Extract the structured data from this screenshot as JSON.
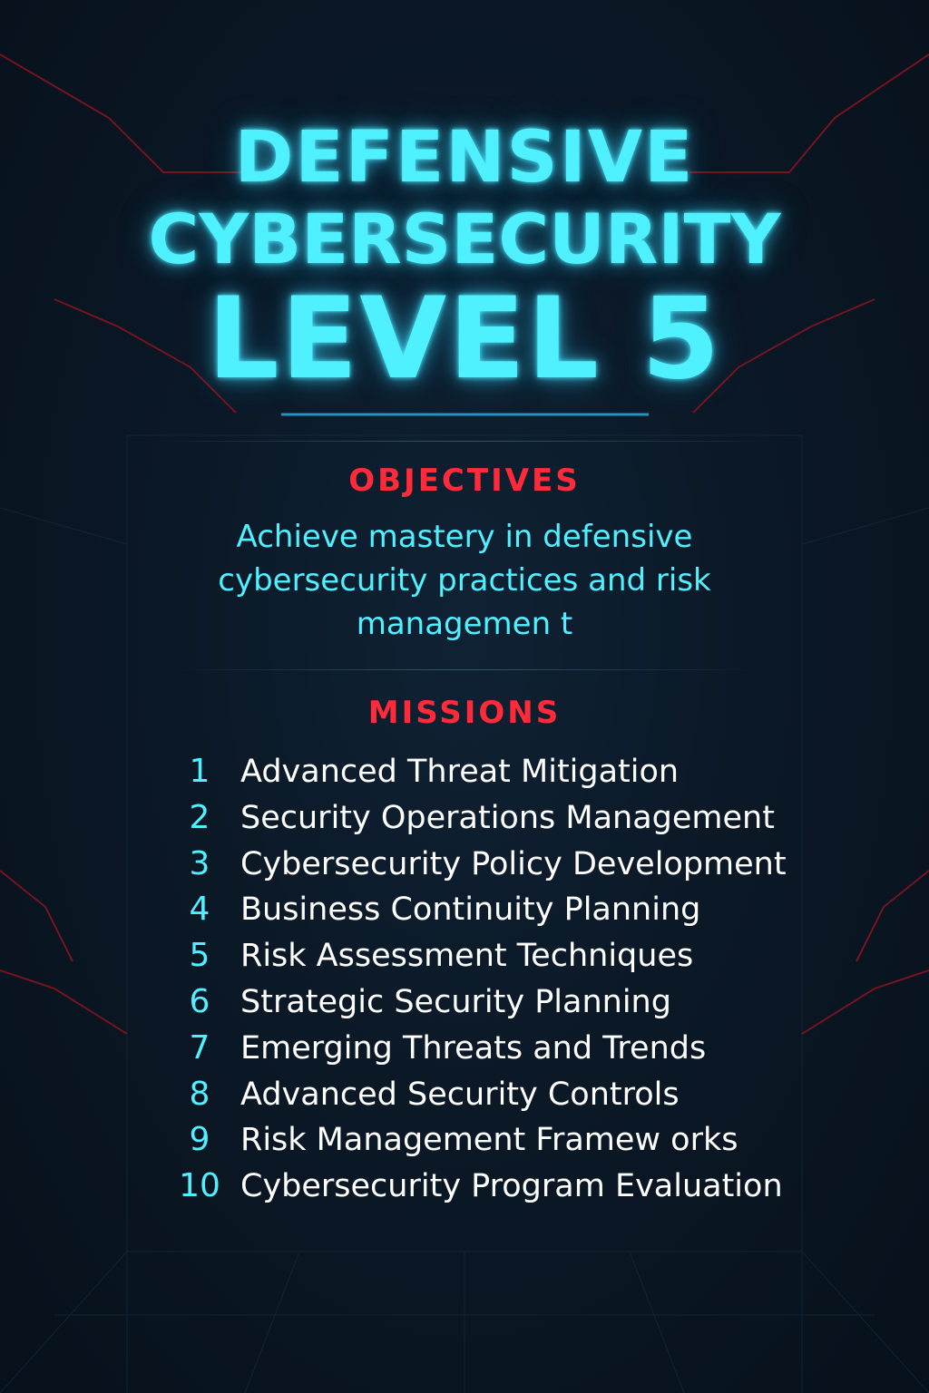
{
  "title": {
    "line1": "DEFENSIVE",
    "line2": "CYBERSECURITY",
    "line3": "LEVEL 5"
  },
  "objectives": {
    "heading": "OBJECTIVES",
    "text": "Achieve mastery in defensive cybersecurity practices and risk managemen t"
  },
  "missions": {
    "heading": "MISSIONS",
    "items": [
      {
        "number": "1",
        "label": "Advanced Threat Mitigation"
      },
      {
        "number": "2",
        "label": "Security Operations Management"
      },
      {
        "number": "3",
        "label": "Cybersecurity Policy Development"
      },
      {
        "number": "4",
        "label": "Business Continuity Planning"
      },
      {
        "number": "5",
        "label": "Risk Assessment Techniques"
      },
      {
        "number": "6",
        "label": "Strategic Security Planning"
      },
      {
        "number": "7",
        "label": "Emerging Threats and Trends"
      },
      {
        "number": "8",
        "label": "Advanced Security Controls"
      },
      {
        "number": "9",
        "label": "Risk Management Framew orks"
      },
      {
        "number": "10",
        "label": "Cybersecurity Program Evaluation"
      }
    ]
  },
  "colors": {
    "background": "#0b1826",
    "accent_cyan": "#4ff0ff",
    "accent_red": "#ff2a3a",
    "text_white": "#ffffff",
    "circuit_red": "#8a1420",
    "grid_blue": "#1a3346"
  }
}
